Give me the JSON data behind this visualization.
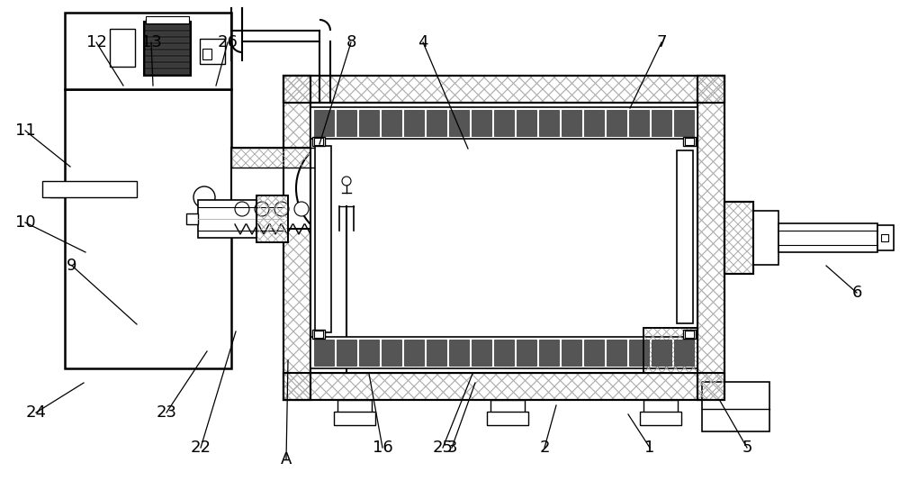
{
  "bg": "#ffffff",
  "lc": "#000000",
  "gray": "#888888",
  "dark": "#333333",
  "hatch_gray": "#777777",
  "figsize": [
    10.0,
    5.44
  ],
  "dpi": 100,
  "labels": [
    "1",
    "2",
    "3",
    "4",
    "5",
    "6",
    "7",
    "8",
    "9",
    "10",
    "11",
    "12",
    "13",
    "16",
    "22",
    "23",
    "24",
    "25",
    "26",
    "A"
  ],
  "lx": [
    722,
    605,
    502,
    470,
    830,
    952,
    735,
    390,
    80,
    28,
    28,
    107,
    168,
    425,
    223,
    185,
    40,
    492,
    253,
    318
  ],
  "ly": [
    497,
    497,
    497,
    47,
    497,
    325,
    47,
    47,
    295,
    247,
    145,
    47,
    47,
    497,
    497,
    458,
    458,
    497,
    47,
    510
  ],
  "ax": [
    698,
    618,
    528,
    520,
    800,
    918,
    700,
    355,
    152,
    95,
    78,
    137,
    170,
    410,
    262,
    230,
    93,
    525,
    240,
    320
  ],
  "ay": [
    460,
    450,
    425,
    165,
    445,
    295,
    120,
    160,
    360,
    280,
    185,
    95,
    95,
    415,
    368,
    390,
    425,
    415,
    95,
    400
  ]
}
